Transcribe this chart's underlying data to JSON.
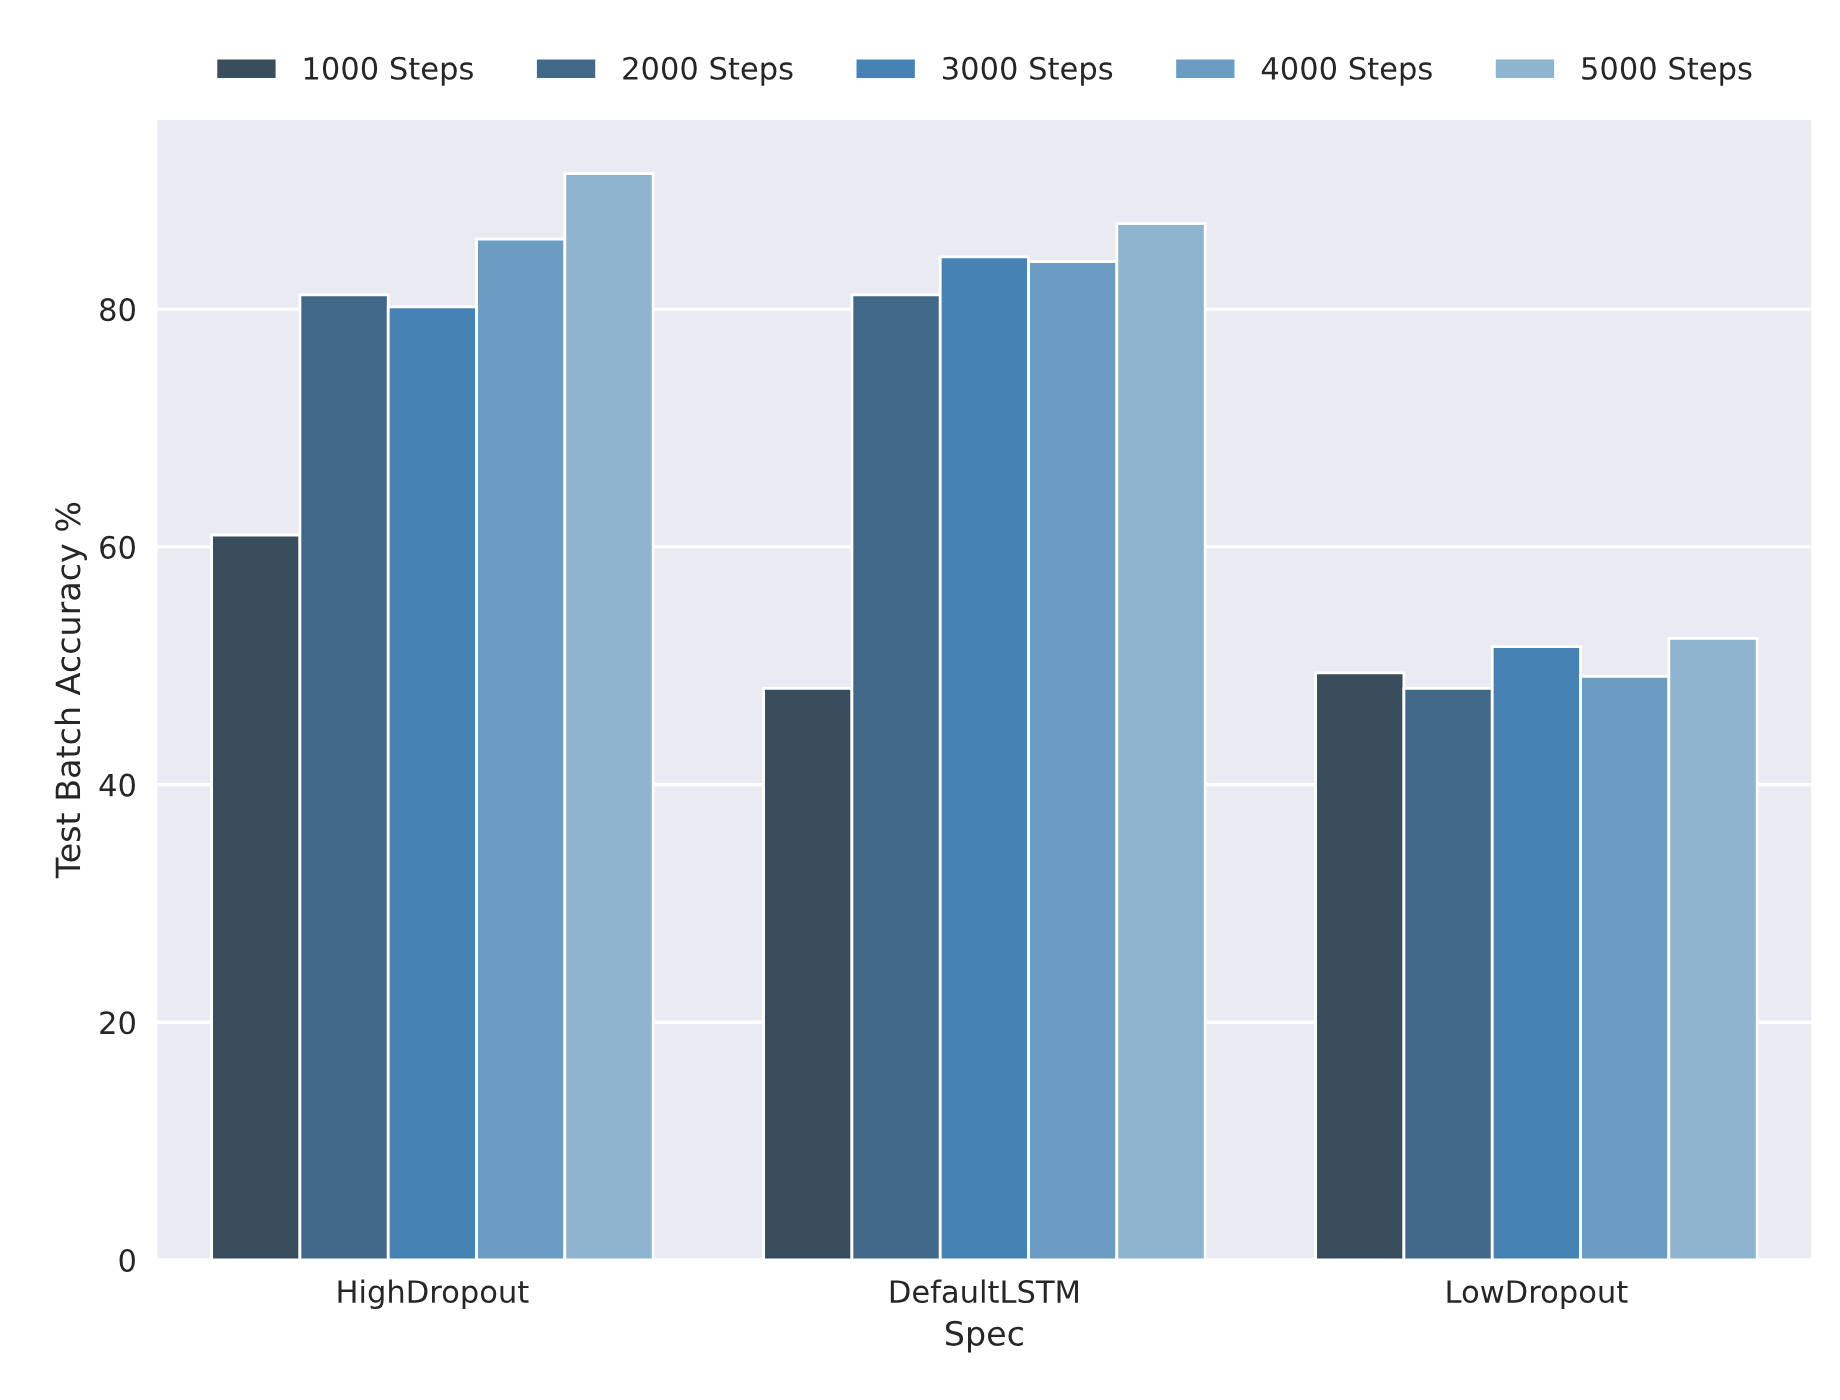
{
  "chart_data": {
    "type": "bar",
    "xlabel": "Spec",
    "ylabel": "Test Batch Accuracy %",
    "categories": [
      "HighDropout",
      "DefaultLSTM",
      "LowDropout"
    ],
    "series": [
      {
        "name": "1000 Steps",
        "color": "#3a4d5c",
        "values": [
          61.0,
          48.1,
          49.4
        ]
      },
      {
        "name": "2000 Steps",
        "color": "#416887",
        "values": [
          81.2,
          81.2,
          48.1
        ]
      },
      {
        "name": "3000 Steps",
        "color": "#4682b4",
        "values": [
          80.2,
          84.4,
          51.6
        ]
      },
      {
        "name": "4000 Steps",
        "color": "#6b9dc2",
        "values": [
          85.9,
          84.0,
          49.1
        ]
      },
      {
        "name": "5000 Steps",
        "color": "#8fb4d0",
        "values": [
          91.4,
          87.2,
          52.3
        ]
      }
    ],
    "ylim": [
      0,
      96
    ],
    "yticks": [
      0,
      20,
      40,
      60,
      80
    ],
    "grid": "y",
    "legend": "top"
  }
}
